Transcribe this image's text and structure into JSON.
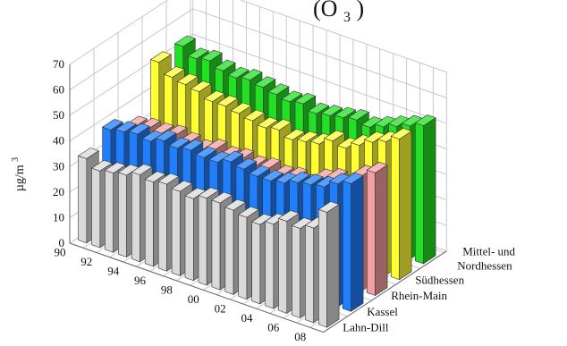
{
  "chart_data": {
    "type": "bar",
    "title_fragment": "(O",
    "title_subscript": "3",
    "title_close": ")",
    "ylabel": "µg/m",
    "ylabel_superscript": "3",
    "ylim": [
      0,
      70
    ],
    "yticks": [
      "0",
      "10",
      "20",
      "30",
      "40",
      "50",
      "60",
      "70"
    ],
    "categories": [
      "90",
      "91",
      "92",
      "93",
      "94",
      "95",
      "96",
      "97",
      "98",
      "99",
      "00",
      "01",
      "02",
      "03",
      "04",
      "05",
      "06",
      "07",
      "08"
    ],
    "xtick_labels_shown": [
      "90",
      "92",
      "94",
      "96",
      "98",
      "00",
      "02",
      "04",
      "06",
      "08"
    ],
    "grid": true,
    "series": [
      {
        "name": "Lahn-Dill",
        "color": "#d9d9d9",
        "values": [
          33,
          30,
          31,
          32,
          34,
          33,
          34,
          33,
          32,
          34,
          34,
          33,
          32,
          31,
          33,
          36,
          35,
          37,
          45
        ]
      },
      {
        "name": "Kassel",
        "color": "#1f7fff",
        "values": [
          38,
          39,
          40,
          39,
          41,
          40,
          41,
          40,
          40,
          42,
          41,
          40,
          40,
          41,
          43,
          44,
          45,
          48,
          50
        ]
      },
      {
        "name": "Rhein-Main",
        "color": "#f4a0a0",
        "values": [
          33,
          34,
          34,
          35,
          34,
          33,
          35,
          34,
          35,
          34,
          35,
          34,
          35,
          34,
          38,
          40,
          40,
          45,
          48
        ]
      },
      {
        "name": "Südhessen",
        "color": "#ffff33",
        "values": [
          52,
          48,
          47,
          46,
          44,
          44,
          43,
          42,
          41,
          42,
          40,
          41,
          42,
          45,
          44,
          47,
          50,
          52,
          55
        ]
      },
      {
        "name": "Mittel- und Nordhessen",
        "color": "#22e022",
        "values": [
          52,
          49,
          50,
          48,
          47,
          48,
          47,
          46,
          45,
          46,
          44,
          45,
          46,
          47,
          46,
          48,
          50,
          52,
          54
        ]
      }
    ]
  }
}
